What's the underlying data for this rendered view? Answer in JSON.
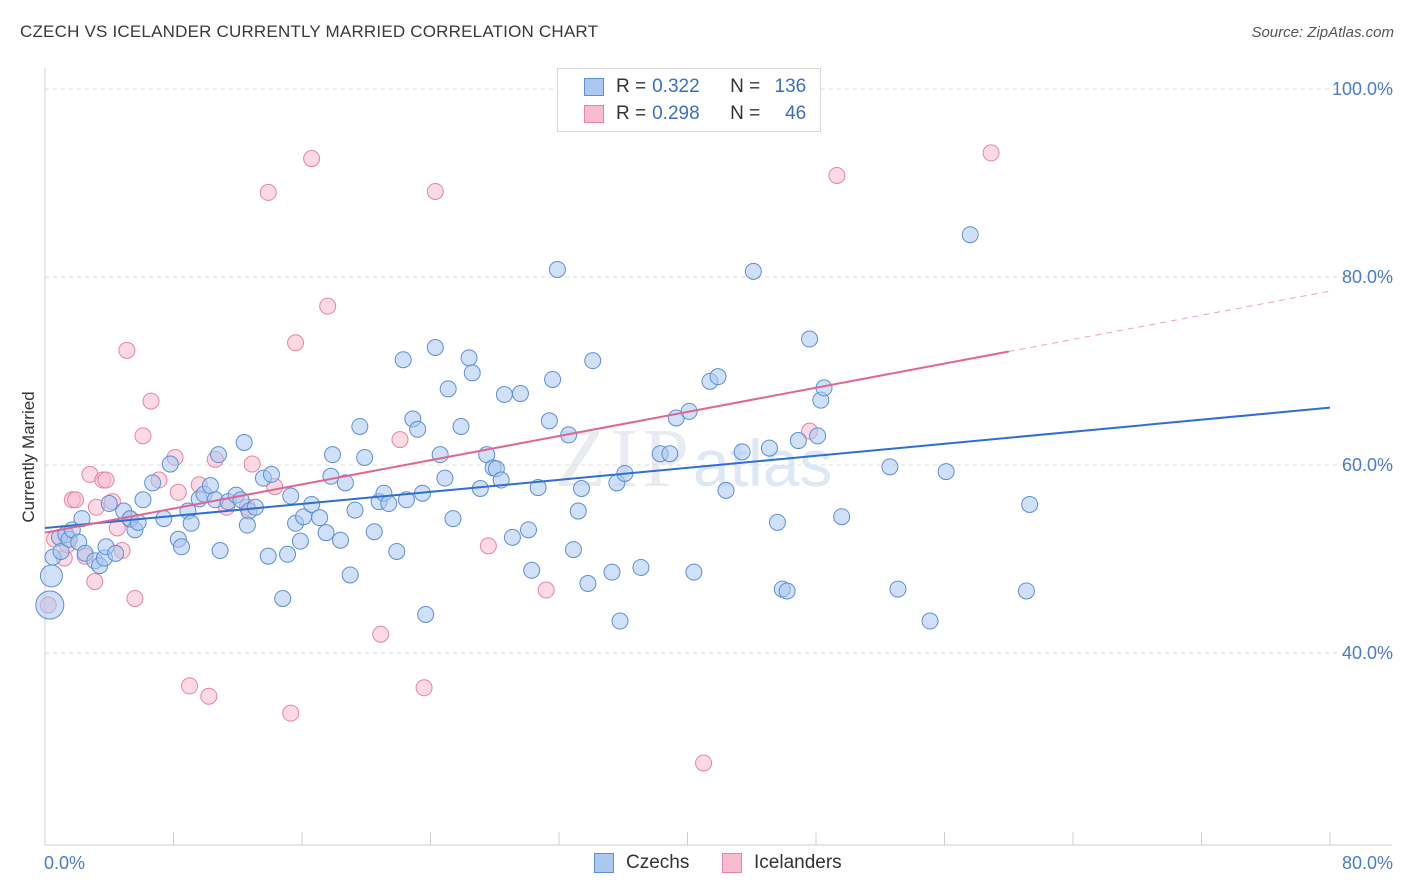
{
  "header": {
    "title": "CZECH VS ICELANDER CURRENTLY MARRIED CORRELATION CHART",
    "source": "Source: ZipAtlas.com"
  },
  "watermark": {
    "main": "ZIP",
    "sub": "atlas"
  },
  "legend": {
    "rows": [
      {
        "r_label": "R =",
        "r_value": "0.322",
        "n_label": "N =",
        "n_value": "136"
      },
      {
        "r_label": "R =",
        "r_value": "0.298",
        "n_label": "N =",
        "n_value": "46"
      }
    ]
  },
  "bottom_legend": {
    "czechs": "Czechs",
    "icelanders": "Icelanders"
  },
  "colors": {
    "czech_fill": "#aac8f0",
    "czech_stroke": "#5b8fd6",
    "czech_line": "#2f6fd0",
    "iceland_fill": "#f7bccd",
    "iceland_stroke": "#e883a3",
    "iceland_line": "#e06690",
    "tick_text": "#4a7cc9",
    "grid": "#dcdcdc"
  },
  "chart_data": {
    "type": "scatter",
    "title": "CZECH VS ICELANDER CURRENTLY MARRIED CORRELATION CHART",
    "ylabel": "Currently Married",
    "xlabel": "",
    "xlim": [
      0,
      80
    ],
    "ylim": [
      20,
      100
    ],
    "x_tick_labels": [
      "0.0%",
      "80.0%"
    ],
    "y_tick_labels": [
      {
        "value": 100,
        "label": "100.0%"
      },
      {
        "value": 80,
        "label": "80.0%"
      },
      {
        "value": 60,
        "label": "60.0%"
      },
      {
        "value": 40,
        "label": "40.0%"
      }
    ],
    "grid": true,
    "legend_position": "top-center",
    "series": [
      {
        "name": "Czechs",
        "r": 0.322,
        "n": 136,
        "trend": {
          "x": [
            0,
            80
          ],
          "y": [
            53.3,
            66.1
          ],
          "dashed_after": null
        },
        "points": [
          [
            0.3,
            45.1
          ],
          [
            0.4,
            48.2
          ],
          [
            0.5,
            50.2
          ],
          [
            0.9,
            52.3
          ],
          [
            1.0,
            50.8
          ],
          [
            1.3,
            52.6
          ],
          [
            1.5,
            52.1
          ],
          [
            1.7,
            53.1
          ],
          [
            2.1,
            51.8
          ],
          [
            2.3,
            54.3
          ],
          [
            2.5,
            50.6
          ],
          [
            3.1,
            49.8
          ],
          [
            3.4,
            49.3
          ],
          [
            3.7,
            50.1
          ],
          [
            3.8,
            51.3
          ],
          [
            4.0,
            55.9
          ],
          [
            4.4,
            50.6
          ],
          [
            4.9,
            55.1
          ],
          [
            5.3,
            54.3
          ],
          [
            5.6,
            53.1
          ],
          [
            5.8,
            53.9
          ],
          [
            6.1,
            56.3
          ],
          [
            6.7,
            58.1
          ],
          [
            7.4,
            54.3
          ],
          [
            7.8,
            60.1
          ],
          [
            8.3,
            52.1
          ],
          [
            8.5,
            51.3
          ],
          [
            8.9,
            55.1
          ],
          [
            9.1,
            53.8
          ],
          [
            9.6,
            56.4
          ],
          [
            9.9,
            56.9
          ],
          [
            10.3,
            57.8
          ],
          [
            10.6,
            56.3
          ],
          [
            10.8,
            61.1
          ],
          [
            10.9,
            50.9
          ],
          [
            11.4,
            56.1
          ],
          [
            11.9,
            56.8
          ],
          [
            12.2,
            56.3
          ],
          [
            12.7,
            55.1
          ],
          [
            12.4,
            62.4
          ],
          [
            12.6,
            53.6
          ],
          [
            13.1,
            55.5
          ],
          [
            13.6,
            58.6
          ],
          [
            13.9,
            50.3
          ],
          [
            14.1,
            59.0
          ],
          [
            14.8,
            45.8
          ],
          [
            15.1,
            50.5
          ],
          [
            15.3,
            56.7
          ],
          [
            15.6,
            53.8
          ],
          [
            15.9,
            51.9
          ],
          [
            16.1,
            54.5
          ],
          [
            16.6,
            55.8
          ],
          [
            17.1,
            54.4
          ],
          [
            17.5,
            52.8
          ],
          [
            17.8,
            58.8
          ],
          [
            17.9,
            61.1
          ],
          [
            18.4,
            52.0
          ],
          [
            18.7,
            58.1
          ],
          [
            19.0,
            48.3
          ],
          [
            19.3,
            55.2
          ],
          [
            19.6,
            64.1
          ],
          [
            19.9,
            60.8
          ],
          [
            20.5,
            52.9
          ],
          [
            20.8,
            56.1
          ],
          [
            21.1,
            57.0
          ],
          [
            21.4,
            55.9
          ],
          [
            21.9,
            50.8
          ],
          [
            22.3,
            71.2
          ],
          [
            22.5,
            56.3
          ],
          [
            22.9,
            64.9
          ],
          [
            23.2,
            63.8
          ],
          [
            23.5,
            57.0
          ],
          [
            23.7,
            44.1
          ],
          [
            24.3,
            72.5
          ],
          [
            24.6,
            61.1
          ],
          [
            25.1,
            68.1
          ],
          [
            24.9,
            58.6
          ],
          [
            25.4,
            54.3
          ],
          [
            25.9,
            64.1
          ],
          [
            26.4,
            71.4
          ],
          [
            26.6,
            69.8
          ],
          [
            27.1,
            57.5
          ],
          [
            27.5,
            61.1
          ],
          [
            27.9,
            59.7
          ],
          [
            28.1,
            59.6
          ],
          [
            28.4,
            58.4
          ],
          [
            28.6,
            67.5
          ],
          [
            29.1,
            52.3
          ],
          [
            29.6,
            67.6
          ],
          [
            30.1,
            53.1
          ],
          [
            30.3,
            48.8
          ],
          [
            30.7,
            57.6
          ],
          [
            31.4,
            64.7
          ],
          [
            31.6,
            69.1
          ],
          [
            31.9,
            80.8
          ],
          [
            32.6,
            63.2
          ],
          [
            32.9,
            51.0
          ],
          [
            33.2,
            55.1
          ],
          [
            33.4,
            57.5
          ],
          [
            33.8,
            47.4
          ],
          [
            34.1,
            71.1
          ],
          [
            35.3,
            48.6
          ],
          [
            35.6,
            58.1
          ],
          [
            35.8,
            43.4
          ],
          [
            36.1,
            59.1
          ],
          [
            37.1,
            49.1
          ],
          [
            38.3,
            61.2
          ],
          [
            38.9,
            61.2
          ],
          [
            39.3,
            65.0
          ],
          [
            40.1,
            65.7
          ],
          [
            40.4,
            48.6
          ],
          [
            41.4,
            68.9
          ],
          [
            41.9,
            69.4
          ],
          [
            42.4,
            57.3
          ],
          [
            43.4,
            61.4
          ],
          [
            44.1,
            80.6
          ],
          [
            45.1,
            61.8
          ],
          [
            45.6,
            53.9
          ],
          [
            45.9,
            46.8
          ],
          [
            46.2,
            46.6
          ],
          [
            46.9,
            62.6
          ],
          [
            47.6,
            73.4
          ],
          [
            48.1,
            63.1
          ],
          [
            48.3,
            66.9
          ],
          [
            48.5,
            68.2
          ],
          [
            49.6,
            54.5
          ],
          [
            52.6,
            59.8
          ],
          [
            53.1,
            46.8
          ],
          [
            55.1,
            43.4
          ],
          [
            56.1,
            59.3
          ],
          [
            57.6,
            84.5
          ],
          [
            61.1,
            46.6
          ],
          [
            61.3,
            55.8
          ]
        ]
      },
      {
        "name": "Icelanders",
        "r": 0.298,
        "n": 46,
        "trend": {
          "x": [
            0,
            80
          ],
          "y": [
            52.8,
            78.5
          ],
          "solid_until_x": 60
        },
        "points": [
          [
            0.2,
            45.1
          ],
          [
            0.6,
            52.1
          ],
          [
            1.2,
            50.1
          ],
          [
            1.4,
            51.5
          ],
          [
            1.7,
            56.3
          ],
          [
            1.9,
            56.3
          ],
          [
            2.5,
            50.3
          ],
          [
            2.8,
            59.0
          ],
          [
            3.1,
            47.6
          ],
          [
            3.2,
            55.5
          ],
          [
            3.6,
            58.4
          ],
          [
            3.8,
            58.4
          ],
          [
            4.2,
            56.1
          ],
          [
            4.5,
            53.3
          ],
          [
            4.8,
            50.9
          ],
          [
            5.1,
            72.2
          ],
          [
            5.3,
            54.2
          ],
          [
            5.6,
            45.8
          ],
          [
            6.1,
            63.1
          ],
          [
            6.6,
            66.8
          ],
          [
            7.1,
            58.4
          ],
          [
            8.1,
            60.8
          ],
          [
            8.3,
            57.1
          ],
          [
            9.0,
            36.5
          ],
          [
            9.6,
            57.9
          ],
          [
            10.2,
            35.4
          ],
          [
            10.6,
            60.6
          ],
          [
            11.3,
            55.5
          ],
          [
            12.6,
            55.5
          ],
          [
            12.9,
            60.1
          ],
          [
            13.9,
            89.0
          ],
          [
            14.3,
            57.7
          ],
          [
            15.3,
            33.6
          ],
          [
            15.6,
            73.0
          ],
          [
            16.6,
            92.6
          ],
          [
            17.6,
            76.9
          ],
          [
            20.9,
            42.0
          ],
          [
            22.1,
            62.7
          ],
          [
            23.6,
            36.3
          ],
          [
            24.3,
            89.1
          ],
          [
            27.6,
            51.4
          ],
          [
            31.2,
            46.7
          ],
          [
            41.0,
            28.3
          ],
          [
            47.6,
            63.6
          ],
          [
            49.3,
            90.8
          ],
          [
            58.9,
            93.2
          ]
        ]
      }
    ]
  }
}
